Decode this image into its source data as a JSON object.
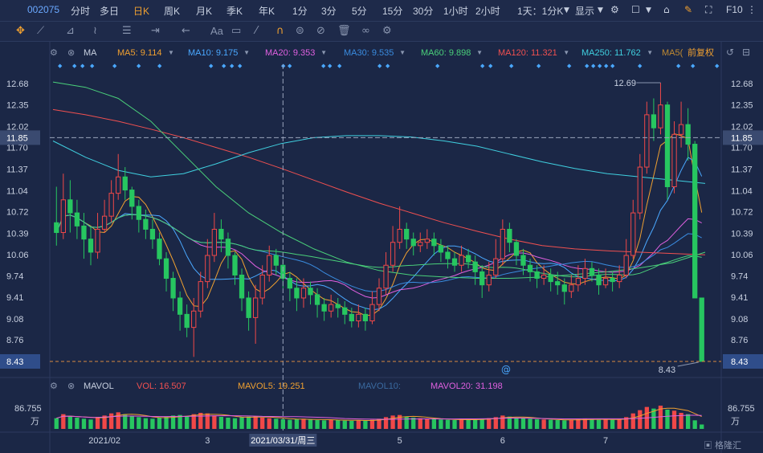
{
  "toolbar": {
    "code": "002075",
    "periods": [
      "分时",
      "多日",
      "日K",
      "周K",
      "月K",
      "季K",
      "年K",
      "1分",
      "3分",
      "5分",
      "15分",
      "30分",
      "1小时",
      "2小时"
    ],
    "active_period": "日K",
    "combo_label": "1天：1分K",
    "display_label": "显示",
    "f10_label": "F10"
  },
  "drawing_tools": {
    "text_tool_label": "Aa"
  },
  "ma_legend": {
    "name": "MA",
    "items": [
      {
        "label": "MA5: 9.114",
        "color": "#f0a030"
      },
      {
        "label": "MA10: 9.175",
        "color": "#4aa8ff"
      },
      {
        "label": "MA20: 9.353",
        "color": "#e060e0"
      },
      {
        "label": "MA30: 9.535",
        "color": "#3a8ce0"
      },
      {
        "label": "MA60: 9.898",
        "color": "#4ad07a"
      },
      {
        "label": "MA120: 11.321",
        "color": "#f05050"
      },
      {
        "label": "MA250: 11.762",
        "color": "#40d0e0"
      },
      {
        "label": "MA5(",
        "color": "#c08a30"
      }
    ],
    "adjust_label": "前复权"
  },
  "vol_legend": {
    "name": "MAVOL",
    "items": [
      {
        "label": "VOL: 16.507",
        "color": "#f05050"
      },
      {
        "label": "MAVOL5: 19.251",
        "color": "#f0a030"
      },
      {
        "label": "MAVOL10:",
        "color": "#3a6aa0"
      },
      {
        "label": "MAVOL20: 31.198",
        "color": "#e060e0"
      }
    ],
    "axis_top": "86.755",
    "axis_unit": "万"
  },
  "chart_data": {
    "type": "candlestick",
    "y_ticks": [
      "12.68",
      "12.35",
      "12.02",
      "11.70",
      "11.37",
      "11.04",
      "10.72",
      "10.39",
      "10.06",
      "9.74",
      "9.41",
      "9.08",
      "8.76"
    ],
    "ylim": [
      8.43,
      12.8
    ],
    "crosshair_price": "11.85",
    "current_price": "8.43",
    "high_label": "12.69",
    "low_label": "8.43",
    "x_labels": [
      "2021/02",
      "3",
      "5",
      "6",
      "7"
    ],
    "crosshair_date": "2021/03/31/周三",
    "candles": [
      [
        10.55,
        10.4,
        11.1,
        10.2
      ],
      [
        10.4,
        10.9,
        11.3,
        10.3
      ],
      [
        10.9,
        10.7,
        11.2,
        10.4
      ],
      [
        10.7,
        10.5,
        10.9,
        10.3
      ],
      [
        10.5,
        10.3,
        10.7,
        10.0
      ],
      [
        10.3,
        10.1,
        10.5,
        9.9
      ],
      [
        10.1,
        10.45,
        10.7,
        10.0
      ],
      [
        10.45,
        10.65,
        10.9,
        10.4
      ],
      [
        10.65,
        11.0,
        11.2,
        10.55
      ],
      [
        11.0,
        11.25,
        11.6,
        10.9
      ],
      [
        11.25,
        11.05,
        11.4,
        10.9
      ],
      [
        11.05,
        10.8,
        11.1,
        10.6
      ],
      [
        10.8,
        10.6,
        10.9,
        10.4
      ],
      [
        10.6,
        10.45,
        10.75,
        10.3
      ],
      [
        10.45,
        10.3,
        10.6,
        10.15
      ],
      [
        10.3,
        10.0,
        10.4,
        9.9
      ],
      [
        10.0,
        9.7,
        10.1,
        9.5
      ],
      [
        9.7,
        9.4,
        9.8,
        9.2
      ],
      [
        9.4,
        9.15,
        9.5,
        8.9
      ],
      [
        9.15,
        8.95,
        9.3,
        8.8
      ],
      [
        8.95,
        9.2,
        9.4,
        8.5
      ],
      [
        9.2,
        9.65,
        9.8,
        9.1
      ],
      [
        9.65,
        10.05,
        10.3,
        9.55
      ],
      [
        10.05,
        10.45,
        10.7,
        9.95
      ],
      [
        10.45,
        10.3,
        10.6,
        10.1
      ],
      [
        10.3,
        10.05,
        10.4,
        9.85
      ],
      [
        10.05,
        9.75,
        10.1,
        9.6
      ],
      [
        9.75,
        9.4,
        9.85,
        9.2
      ],
      [
        9.4,
        9.1,
        9.5,
        8.9
      ],
      [
        9.1,
        9.4,
        9.6,
        8.7
      ],
      [
        9.4,
        9.75,
        9.9,
        9.3
      ],
      [
        9.75,
        10.05,
        10.2,
        9.65
      ],
      [
        10.05,
        9.9,
        10.15,
        9.75
      ],
      [
        9.9,
        9.7,
        10.0,
        9.55
      ],
      [
        9.7,
        9.55,
        9.8,
        9.35
      ],
      [
        9.55,
        9.4,
        9.7,
        9.2
      ],
      [
        9.4,
        9.55,
        9.7,
        9.25
      ],
      [
        9.55,
        9.45,
        9.65,
        9.3
      ],
      [
        9.45,
        9.3,
        9.55,
        9.1
      ],
      [
        9.3,
        9.2,
        9.4,
        9.05
      ],
      [
        9.2,
        9.3,
        9.45,
        9.1
      ],
      [
        9.3,
        9.25,
        9.4,
        9.1
      ],
      [
        9.25,
        9.15,
        9.35,
        9.0
      ],
      [
        9.15,
        9.05,
        9.25,
        8.95
      ],
      [
        9.05,
        9.15,
        9.3,
        8.95
      ],
      [
        9.15,
        9.05,
        9.25,
        8.9
      ],
      [
        9.05,
        9.3,
        9.5,
        9.0
      ],
      [
        9.3,
        9.55,
        9.7,
        9.2
      ],
      [
        9.55,
        9.9,
        10.1,
        9.45
      ],
      [
        9.9,
        10.25,
        10.5,
        9.8
      ],
      [
        10.25,
        10.45,
        10.8,
        10.15
      ],
      [
        10.45,
        10.3,
        10.55,
        10.15
      ],
      [
        10.3,
        10.2,
        10.4,
        10.05
      ],
      [
        10.2,
        10.25,
        10.4,
        10.1
      ],
      [
        10.25,
        10.3,
        10.45,
        10.15
      ],
      [
        10.3,
        10.2,
        10.4,
        10.05
      ],
      [
        10.2,
        10.1,
        10.3,
        9.95
      ],
      [
        10.1,
        10.0,
        10.2,
        9.85
      ],
      [
        10.0,
        9.9,
        10.1,
        9.8
      ],
      [
        9.9,
        10.05,
        10.2,
        9.8
      ],
      [
        10.05,
        9.95,
        10.15,
        9.85
      ],
      [
        9.95,
        9.8,
        10.05,
        9.6
      ],
      [
        9.8,
        9.6,
        9.9,
        9.4
      ],
      [
        9.6,
        9.75,
        9.95,
        9.5
      ],
      [
        9.75,
        10.0,
        10.3,
        9.7
      ],
      [
        10.0,
        10.45,
        10.6,
        9.9
      ],
      [
        10.45,
        10.25,
        10.55,
        10.1
      ],
      [
        10.25,
        10.05,
        10.3,
        9.9
      ],
      [
        10.05,
        9.9,
        10.15,
        9.75
      ],
      [
        9.9,
        9.8,
        10.0,
        9.65
      ],
      [
        9.8,
        9.7,
        9.9,
        9.55
      ],
      [
        9.7,
        9.75,
        9.9,
        9.6
      ],
      [
        9.75,
        9.65,
        9.85,
        9.5
      ],
      [
        9.65,
        9.6,
        9.8,
        9.45
      ],
      [
        9.6,
        9.5,
        9.7,
        9.3
      ],
      [
        9.5,
        9.6,
        9.75,
        9.4
      ],
      [
        9.6,
        9.7,
        9.9,
        9.5
      ],
      [
        9.7,
        9.85,
        10.0,
        9.6
      ],
      [
        9.85,
        9.75,
        9.95,
        9.65
      ],
      [
        9.75,
        9.6,
        9.85,
        9.45
      ],
      [
        9.6,
        9.7,
        9.85,
        9.55
      ],
      [
        9.7,
        9.65,
        9.8,
        9.5
      ],
      [
        9.65,
        9.75,
        9.9,
        9.55
      ],
      [
        9.75,
        10.05,
        10.3,
        9.7
      ],
      [
        10.05,
        10.7,
        10.9,
        10.0
      ],
      [
        10.7,
        11.4,
        11.6,
        10.6
      ],
      [
        11.4,
        12.2,
        12.4,
        11.3
      ],
      [
        12.2,
        12.0,
        12.45,
        11.8
      ],
      [
        12.0,
        12.35,
        12.69,
        11.9
      ],
      [
        12.35,
        11.1,
        12.4,
        10.9
      ],
      [
        11.1,
        11.9,
        12.1,
        11.0
      ],
      [
        11.9,
        12.05,
        12.4,
        11.7
      ],
      [
        12.05,
        11.75,
        12.3,
        11.5
      ],
      [
        11.75,
        9.4,
        11.8,
        9.4
      ],
      [
        9.4,
        8.43,
        9.4,
        8.43
      ]
    ],
    "volumes": [
      40,
      55,
      48,
      42,
      38,
      35,
      45,
      50,
      58,
      62,
      55,
      48,
      44,
      40,
      38,
      42,
      46,
      50,
      52,
      48,
      55,
      60,
      58,
      50,
      45,
      42,
      40,
      44,
      46,
      48,
      42,
      40,
      38,
      36,
      34,
      36,
      38,
      35,
      33,
      32,
      34,
      33,
      31,
      30,
      32,
      31,
      34,
      38,
      44,
      50,
      52,
      46,
      42,
      40,
      38,
      36,
      35,
      34,
      33,
      36,
      35,
      34,
      38,
      40,
      44,
      50,
      46,
      42,
      40,
      38,
      36,
      35,
      34,
      33,
      32,
      34,
      36,
      38,
      36,
      34,
      35,
      34,
      36,
      44,
      58,
      70,
      82,
      76,
      86.755,
      72,
      68,
      60,
      55,
      32,
      16.507
    ],
    "vol_ylim": [
      0,
      90
    ]
  }
}
